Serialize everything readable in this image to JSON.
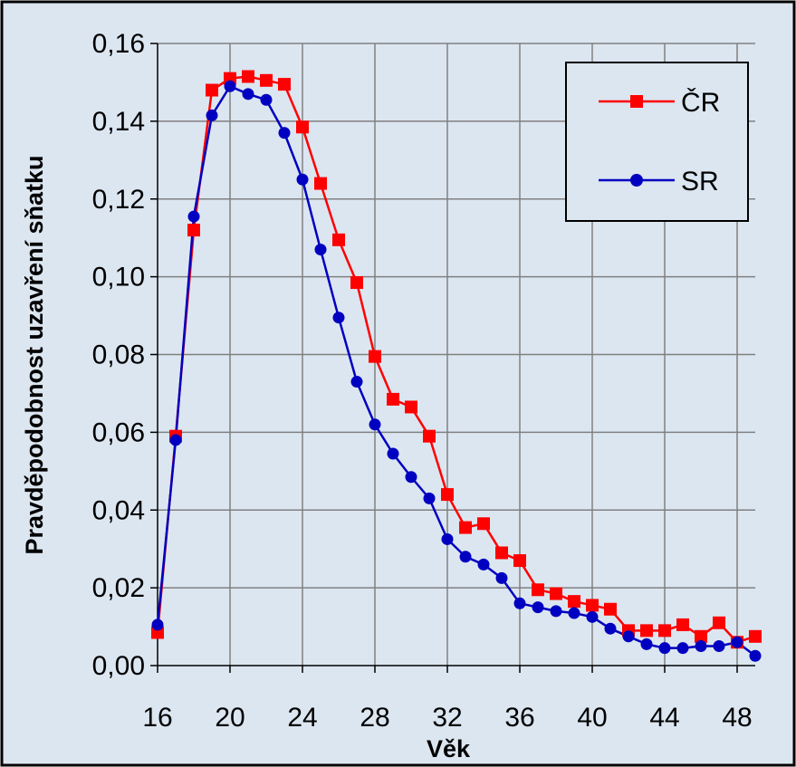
{
  "chart_data": {
    "type": "line",
    "xlabel": "Věk",
    "ylabel": "Pravděpodobnost  uzavření sňatku",
    "xlim": [
      16,
      49
    ],
    "ylim": [
      0,
      0.16
    ],
    "x_ticks": [
      "16",
      "20",
      "24",
      "28",
      "32",
      "36",
      "40",
      "44",
      "48"
    ],
    "x_tick_values": [
      16,
      20,
      24,
      28,
      32,
      36,
      40,
      44,
      48
    ],
    "y_ticks": [
      "0,00",
      "0,02",
      "0,04",
      "0,06",
      "0,08",
      "0,10",
      "0,12",
      "0,14",
      "0,16"
    ],
    "y_tick_values": [
      0,
      0.02,
      0.04,
      0.06,
      0.08,
      0.1,
      0.12,
      0.14,
      0.16
    ],
    "grid": true,
    "legend_position": "top-right",
    "x": [
      16,
      17,
      18,
      19,
      20,
      21,
      22,
      23,
      24,
      25,
      26,
      27,
      28,
      29,
      30,
      31,
      32,
      33,
      34,
      35,
      36,
      37,
      38,
      39,
      40,
      41,
      42,
      43,
      44,
      45,
      46,
      47,
      48,
      49
    ],
    "series": [
      {
        "name": "ČR",
        "color": "#ff0000",
        "marker": "square",
        "values": [
          0.0085,
          0.059,
          0.112,
          0.148,
          0.151,
          0.1515,
          0.1505,
          0.1495,
          0.1385,
          0.124,
          0.1095,
          0.0985,
          0.0795,
          0.0685,
          0.0665,
          0.059,
          0.044,
          0.0355,
          0.0365,
          0.029,
          0.027,
          0.0195,
          0.0185,
          0.0165,
          0.0155,
          0.0145,
          0.009,
          0.009,
          0.009,
          0.0105,
          0.0075,
          0.011,
          0.006,
          0.0075
        ]
      },
      {
        "name": "SR",
        "color": "#0000c0",
        "marker": "circle",
        "values": [
          0.0105,
          0.058,
          0.1155,
          0.1415,
          0.149,
          0.147,
          0.1455,
          0.137,
          0.125,
          0.107,
          0.0895,
          0.073,
          0.062,
          0.0545,
          0.0485,
          0.043,
          0.0325,
          0.028,
          0.026,
          0.0225,
          0.016,
          0.015,
          0.014,
          0.0135,
          0.0125,
          0.0095,
          0.0075,
          0.0055,
          0.0045,
          0.0045,
          0.005,
          0.005,
          0.006,
          0.0025
        ]
      }
    ]
  },
  "colors": {
    "background": "#dce6f1",
    "grid": "#808080",
    "frame": "#000000",
    "legend_background": "#dce6f1"
  }
}
